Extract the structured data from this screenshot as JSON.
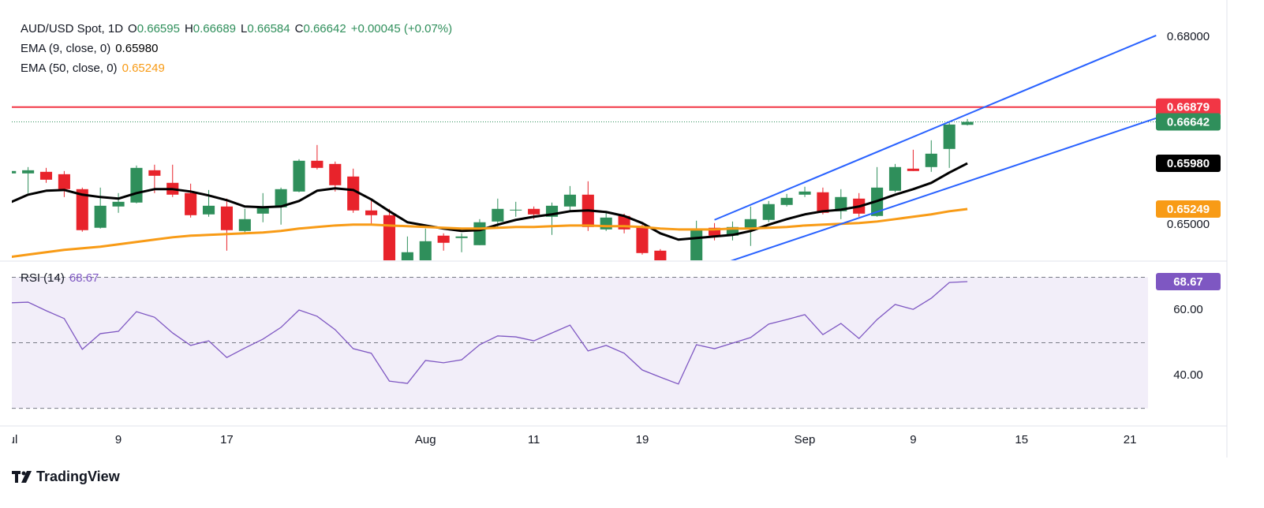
{
  "chart_data": {
    "type": "candlestick",
    "header": {
      "symbol": "AUD/USD Spot, 1D",
      "ohlc_labels": [
        "O",
        "H",
        "L",
        "C"
      ],
      "change": "+0.00045 (+0.07%)"
    },
    "xlim": [
      0.1,
      63.0
    ],
    "xticks": [
      {
        "value": 0,
        "label": "Jul"
      },
      {
        "value": 6,
        "label": "9"
      },
      {
        "value": 12,
        "label": "17"
      },
      {
        "value": 23,
        "label": "Aug"
      },
      {
        "value": 29,
        "label": "11"
      },
      {
        "value": 35,
        "label": "19"
      },
      {
        "value": 44,
        "label": "Sep"
      },
      {
        "value": 50,
        "label": "9"
      },
      {
        "value": 56,
        "label": "15"
      },
      {
        "value": 62,
        "label": "21"
      }
    ],
    "ylim": [
      0.6443,
      0.6859
    ],
    "yticks": [
      {
        "value": 0.68,
        "label": "0.68000"
      },
      {
        "value": 0.65,
        "label": "0.65000"
      }
    ],
    "up_color": "#2f8f5b",
    "down_color": "#e8232b",
    "open": [
      0.65819,
      0.65819,
      0.65844,
      0.65806,
      0.65567,
      0.6495,
      0.6529,
      0.65353,
      0.65869,
      0.65668,
      0.65504,
      0.65164,
      0.6529,
      0.64899,
      0.65176,
      0.65277,
      0.65529,
      0.66021,
      0.6597,
      0.65769,
      0.65227,
      0.65151,
      0.64307,
      0.6437,
      0.64824,
      0.64786,
      0.64672,
      0.6505,
      0.65227,
      0.65252,
      0.65126,
      0.6529,
      0.65479,
      0.64924,
      0.65139,
      0.64962,
      0.64584,
      0.64206,
      0.64307,
      0.6495,
      0.64824,
      0.64924,
      0.65076,
      0.65315,
      0.65479,
      0.65517,
      0.65214,
      0.65416,
      0.65139,
      0.65542,
      0.65895,
      0.6592,
      0.6621,
      0.66595
    ],
    "high": [
      0.6592,
      0.6592,
      0.65907,
      0.65857,
      0.65592,
      0.65592,
      0.65504,
      0.65945,
      0.65958,
      0.65958,
      0.65655,
      0.65554,
      0.65416,
      0.65252,
      0.65504,
      0.65592,
      0.66046,
      0.66273,
      0.66008,
      0.65895,
      0.65378,
      0.65252,
      0.64811,
      0.64937,
      0.64861,
      0.64861,
      0.65088,
      0.65416,
      0.65365,
      0.6529,
      0.65353,
      0.65617,
      0.65693,
      0.65189,
      0.65176,
      0.65,
      0.64609,
      0.6437,
      0.65063,
      0.65025,
      0.6505,
      0.6529,
      0.65378,
      0.65491,
      0.65605,
      0.65592,
      0.65567,
      0.65504,
      0.6592,
      0.6597,
      0.66197,
      0.66348,
      0.66638,
      0.66689
    ],
    "low": [
      0.65769,
      0.65504,
      0.65668,
      0.65441,
      0.64887,
      0.64937,
      0.65189,
      0.6534,
      0.65504,
      0.65441,
      0.65113,
      0.65126,
      0.64584,
      0.64874,
      0.65038,
      0.65,
      0.65517,
      0.65882,
      0.65529,
      0.65189,
      0.65,
      0.64181,
      0.64118,
      0.64332,
      0.64584,
      0.64559,
      0.64672,
      0.64937,
      0.65126,
      0.65088,
      0.64836,
      0.65214,
      0.64899,
      0.64899,
      0.64861,
      0.64521,
      0.64181,
      0.64118,
      0.64282,
      0.64748,
      0.64748,
      0.6466,
      0.65038,
      0.6529,
      0.65441,
      0.65164,
      0.65088,
      0.65126,
      0.65126,
      0.65517,
      0.65857,
      0.65844,
      0.65907,
      0.66584
    ],
    "close": [
      0.65857,
      0.65869,
      0.65718,
      0.65567,
      0.64912,
      0.65302,
      0.65365,
      0.65907,
      0.65781,
      0.65479,
      0.65151,
      0.65302,
      0.64912,
      0.65088,
      0.6529,
      0.65567,
      0.66021,
      0.65907,
      0.6563,
      0.65227,
      0.65151,
      0.64244,
      0.64559,
      0.64735,
      0.6471,
      0.64811,
      0.65038,
      0.65252,
      0.65239,
      0.65164,
      0.65302,
      0.65479,
      0.64962,
      0.65113,
      0.64924,
      0.64546,
      0.64244,
      0.64332,
      0.64912,
      0.64824,
      0.64962,
      0.65088,
      0.65328,
      0.65428,
      0.65529,
      0.65189,
      0.65441,
      0.65176,
      0.65592,
      0.6592,
      0.65857,
      0.66134,
      0.666,
      0.66642
    ],
    "series": [
      {
        "name": "EMA (9, close, 0)",
        "legend_value": "0.65980",
        "color": "#000000",
        "values": [
          0.65353,
          0.65479,
          0.65542,
          0.65554,
          0.65479,
          0.65441,
          0.65416,
          0.65504,
          0.65567,
          0.65567,
          0.65529,
          0.65466,
          0.65391,
          0.6529,
          0.65277,
          0.6529,
          0.65378,
          0.65542,
          0.6558,
          0.65554,
          0.65403,
          0.65214,
          0.65038,
          0.64987,
          0.64937,
          0.64899,
          0.64912,
          0.65,
          0.65076,
          0.65126,
          0.65164,
          0.65214,
          0.65227,
          0.65202,
          0.65139,
          0.65025,
          0.64861,
          0.64761,
          0.64786,
          0.64811,
          0.64836,
          0.64899,
          0.65,
          0.65088,
          0.65164,
          0.65214,
          0.65239,
          0.6529,
          0.65378,
          0.65479,
          0.65567,
          0.65668,
          0.65832,
          0.6598
        ]
      },
      {
        "name": "EMA (50, close, 0)",
        "legend_value": "0.65249",
        "color": "#f89b16",
        "values": [
          0.64483,
          0.64521,
          0.64559,
          0.64597,
          0.64622,
          0.64647,
          0.64685,
          0.64723,
          0.64761,
          0.64798,
          0.64824,
          0.64836,
          0.64849,
          0.64861,
          0.64874,
          0.64899,
          0.64937,
          0.64962,
          0.64987,
          0.65,
          0.65,
          0.64987,
          0.64975,
          0.64962,
          0.6495,
          0.64937,
          0.64937,
          0.6495,
          0.64962,
          0.64962,
          0.64975,
          0.64987,
          0.64987,
          0.64975,
          0.64975,
          0.64962,
          0.64937,
          0.64924,
          0.64924,
          0.64924,
          0.64937,
          0.64937,
          0.6495,
          0.64962,
          0.64987,
          0.65,
          0.65013,
          0.65025,
          0.6505,
          0.65088,
          0.65126,
          0.65164,
          0.65214,
          0.65249
        ]
      }
    ],
    "lines": [
      {
        "x": [
          39,
          63.45
        ],
        "values": [
          0.65076,
          0.68024
        ],
        "color": "#2962ff"
      },
      {
        "x": [
          39,
          63.45
        ],
        "values": [
          0.64332,
          0.66701
        ],
        "color": "#2962ff"
      }
    ],
    "hline": {
      "value": 0.66879,
      "color": "#f23645"
    },
    "rsi": {
      "name": "RSI (14)",
      "color": "#7e57c2",
      "ylim": [
        24.6,
        74.7
      ],
      "yticks": [
        {
          "value": 60,
          "label": "60.00"
        },
        {
          "value": 40,
          "label": "40.00"
        }
      ],
      "levels": [
        70,
        50,
        30
      ],
      "values": [
        62.2,
        62.4,
        59.8,
        57.4,
        48.0,
        52.8,
        53.5,
        59.5,
        57.8,
        53.0,
        49.2,
        50.6,
        45.5,
        48.4,
        51.1,
        54.7,
        60.0,
        58.1,
        54.0,
        48.2,
        46.8,
        38.3,
        37.6,
        44.6,
        43.9,
        44.8,
        49.4,
        52.1,
        51.8,
        50.6,
        53.0,
        55.4,
        47.5,
        49.2,
        46.8,
        41.7,
        39.5,
        37.4,
        49.4,
        48.2,
        49.9,
        51.6,
        55.7,
        57.1,
        58.6,
        52.5,
        55.9,
        51.3,
        57.1,
        61.7,
        60.2,
        63.6,
        68.4,
        68.67
      ]
    },
    "brand": "TradingView"
  }
}
